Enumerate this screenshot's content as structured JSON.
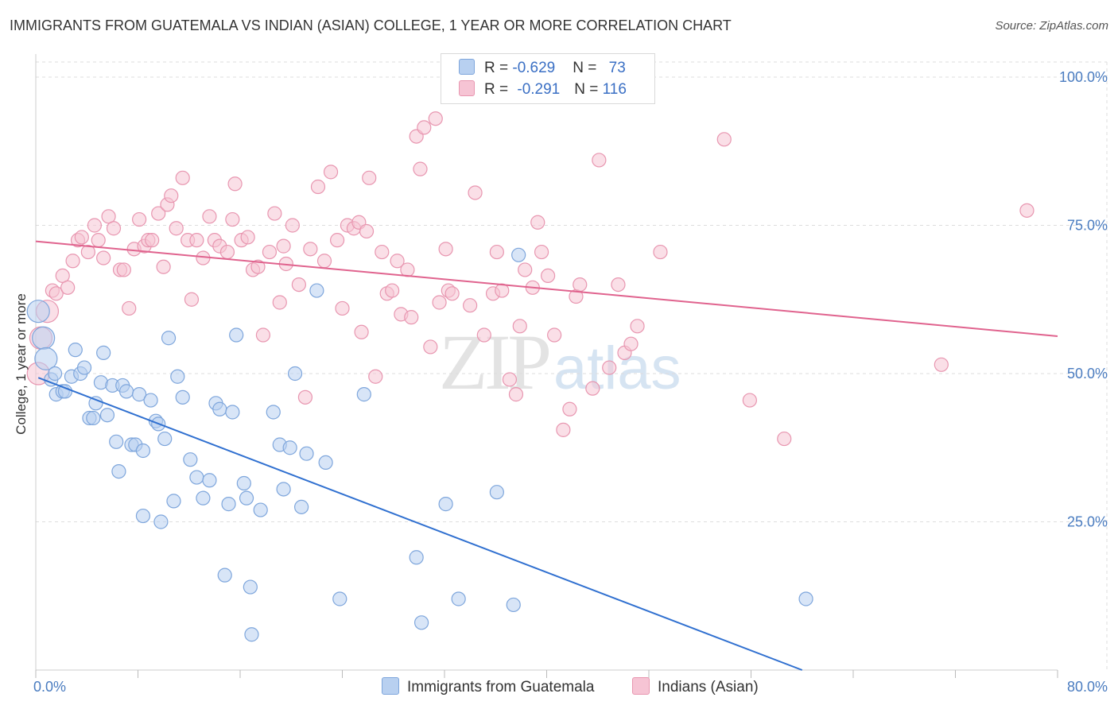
{
  "title": "IMMIGRANTS FROM GUATEMALA VS INDIAN (ASIAN) COLLEGE, 1 YEAR OR MORE CORRELATION CHART",
  "source": "Source: ZipAtlas.com",
  "watermark": {
    "zip": "ZIP",
    "atlas": "atlas"
  },
  "legend": {
    "rows": [
      {
        "r_label": "R = ",
        "r_value": "-0.629",
        "n_label": "N = ",
        "n_value": "73"
      },
      {
        "r_label": "R = ",
        "r_value": "-0.291",
        "n_label": "N = ",
        "n_value": "116"
      }
    ]
  },
  "bottom_legend": {
    "series1": "Immigrants from Guatemala",
    "series2": "Indians (Asian)"
  },
  "colors": {
    "blue_fill": "#b8d0f0",
    "blue_stroke": "#7ea6dc",
    "blue_line": "#3070d0",
    "pink_fill": "#f6c4d4",
    "pink_stroke": "#e896b0",
    "pink_line": "#e0638e",
    "grid": "#dddddd",
    "axis_label": "#4a7cc0"
  },
  "chart_data": {
    "type": "scatter",
    "title": "IMMIGRANTS FROM GUATEMALA VS INDIAN (ASIAN) COLLEGE, 1 YEAR OR MORE CORRELATION CHART",
    "xlabel": "",
    "ylabel": "College, 1 year or more",
    "xlim": [
      0,
      80
    ],
    "ylim": [
      0,
      105
    ],
    "x_tick_labels": [
      "0.0%",
      "80.0%"
    ],
    "y_ticks": [
      25,
      50,
      75,
      100
    ],
    "y_tick_labels": [
      "25.0%",
      "50.0%",
      "75.0%",
      "100.0%"
    ],
    "grid": true,
    "series": [
      {
        "name": "Immigrants from Guatemala",
        "R": -0.629,
        "N": 73,
        "trendline": [
          [
            0.2,
            49.3
          ],
          [
            60,
            0
          ]
        ],
        "points": [
          [
            0.2,
            60.5
          ],
          [
            0.6,
            56
          ],
          [
            0.8,
            52.5
          ],
          [
            1.2,
            49
          ],
          [
            1.5,
            50
          ],
          [
            1.6,
            46.5
          ],
          [
            2.1,
            47
          ],
          [
            2.3,
            47
          ],
          [
            2.8,
            49.5
          ],
          [
            3.1,
            54
          ],
          [
            3.5,
            50
          ],
          [
            3.8,
            51
          ],
          [
            4.2,
            42.5
          ],
          [
            4.5,
            42.5
          ],
          [
            4.7,
            45
          ],
          [
            5.1,
            48.5
          ],
          [
            5.3,
            53.5
          ],
          [
            5.6,
            43
          ],
          [
            6.0,
            48
          ],
          [
            6.3,
            38.5
          ],
          [
            6.5,
            33.5
          ],
          [
            6.8,
            48
          ],
          [
            7.1,
            47
          ],
          [
            7.5,
            38
          ],
          [
            7.8,
            38
          ],
          [
            8.1,
            46.5
          ],
          [
            8.4,
            37
          ],
          [
            8.4,
            26
          ],
          [
            9.0,
            45.5
          ],
          [
            9.4,
            42
          ],
          [
            9.6,
            41.5
          ],
          [
            9.8,
            25
          ],
          [
            10.1,
            39
          ],
          [
            10.4,
            56
          ],
          [
            10.8,
            28.5
          ],
          [
            11.1,
            49.5
          ],
          [
            11.5,
            46
          ],
          [
            12.1,
            35.5
          ],
          [
            12.6,
            32.5
          ],
          [
            13.1,
            29
          ],
          [
            13.6,
            32
          ],
          [
            14.1,
            45
          ],
          [
            14.4,
            44
          ],
          [
            14.8,
            16
          ],
          [
            15.1,
            28
          ],
          [
            15.4,
            43.5
          ],
          [
            15.7,
            56.5
          ],
          [
            16.3,
            31.5
          ],
          [
            16.5,
            29
          ],
          [
            16.8,
            14
          ],
          [
            16.9,
            6
          ],
          [
            17.6,
            27
          ],
          [
            18.6,
            43.5
          ],
          [
            19.1,
            38
          ],
          [
            19.4,
            30.5
          ],
          [
            19.9,
            37.5
          ],
          [
            20.3,
            50
          ],
          [
            20.8,
            27.5
          ],
          [
            21.2,
            36.5
          ],
          [
            22.0,
            64
          ],
          [
            22.7,
            35
          ],
          [
            23.8,
            12
          ],
          [
            25.7,
            46.5
          ],
          [
            29.8,
            19
          ],
          [
            30.2,
            8
          ],
          [
            32.1,
            28
          ],
          [
            33.1,
            12
          ],
          [
            36.1,
            30
          ],
          [
            37.4,
            11
          ],
          [
            37.8,
            70
          ],
          [
            60.3,
            12
          ]
        ]
      },
      {
        "name": "Indians (Asian)",
        "R": -0.291,
        "N": 116,
        "trendline": [
          [
            0,
            72.3
          ],
          [
            80,
            56.3
          ]
        ],
        "points": [
          [
            0.2,
            50
          ],
          [
            0.4,
            56
          ],
          [
            0.9,
            60.5
          ],
          [
            1.3,
            64
          ],
          [
            1.6,
            63.5
          ],
          [
            2.1,
            66.5
          ],
          [
            2.5,
            64.5
          ],
          [
            2.9,
            69
          ],
          [
            3.3,
            72.5
          ],
          [
            3.6,
            73
          ],
          [
            4.1,
            70.5
          ],
          [
            4.6,
            75
          ],
          [
            4.9,
            72.5
          ],
          [
            5.3,
            69.5
          ],
          [
            5.7,
            76.5
          ],
          [
            6.1,
            74.5
          ],
          [
            6.6,
            67.5
          ],
          [
            6.9,
            67.5
          ],
          [
            7.3,
            61
          ],
          [
            7.7,
            71
          ],
          [
            8.1,
            76
          ],
          [
            8.5,
            71.5
          ],
          [
            8.8,
            72.5
          ],
          [
            9.1,
            72.5
          ],
          [
            9.6,
            77
          ],
          [
            10.0,
            68
          ],
          [
            10.3,
            78.5
          ],
          [
            10.6,
            80
          ],
          [
            11.0,
            74.5
          ],
          [
            11.5,
            83
          ],
          [
            11.9,
            72.5
          ],
          [
            12.2,
            62.5
          ],
          [
            12.6,
            72.5
          ],
          [
            13.1,
            69.5
          ],
          [
            13.6,
            76.5
          ],
          [
            14.0,
            72.5
          ],
          [
            14.4,
            71.5
          ],
          [
            15.0,
            70.5
          ],
          [
            15.4,
            76
          ],
          [
            15.6,
            82
          ],
          [
            16.1,
            72.5
          ],
          [
            16.6,
            73
          ],
          [
            17.0,
            67.5
          ],
          [
            17.4,
            68
          ],
          [
            17.8,
            56.5
          ],
          [
            18.3,
            70.5
          ],
          [
            18.7,
            77
          ],
          [
            19.1,
            62
          ],
          [
            19.4,
            71.5
          ],
          [
            19.6,
            68.5
          ],
          [
            20.1,
            75
          ],
          [
            20.6,
            65
          ],
          [
            21.1,
            46
          ],
          [
            21.5,
            71
          ],
          [
            22.1,
            81.5
          ],
          [
            22.6,
            69
          ],
          [
            23.1,
            84
          ],
          [
            23.6,
            72.5
          ],
          [
            24.0,
            61
          ],
          [
            24.4,
            75
          ],
          [
            24.9,
            74.5
          ],
          [
            25.3,
            75.5
          ],
          [
            25.5,
            57
          ],
          [
            25.9,
            74
          ],
          [
            26.1,
            83
          ],
          [
            26.6,
            49.5
          ],
          [
            27.1,
            70.5
          ],
          [
            27.5,
            63.5
          ],
          [
            27.9,
            64
          ],
          [
            28.3,
            69
          ],
          [
            28.6,
            60
          ],
          [
            29.1,
            67.5
          ],
          [
            29.4,
            59.5
          ],
          [
            29.8,
            90
          ],
          [
            30.1,
            84.5
          ],
          [
            30.4,
            91.5
          ],
          [
            30.9,
            54.5
          ],
          [
            31.3,
            93
          ],
          [
            31.6,
            62
          ],
          [
            32.1,
            71
          ],
          [
            32.3,
            64
          ],
          [
            32.6,
            63.5
          ],
          [
            34.0,
            61.5
          ],
          [
            34.4,
            80.5
          ],
          [
            35.1,
            56.5
          ],
          [
            35.8,
            63.5
          ],
          [
            36.1,
            70.5
          ],
          [
            36.5,
            64
          ],
          [
            37.1,
            49
          ],
          [
            37.6,
            46.5
          ],
          [
            37.9,
            58
          ],
          [
            38.3,
            67.5
          ],
          [
            38.9,
            64.5
          ],
          [
            39.3,
            75.5
          ],
          [
            39.6,
            70.5
          ],
          [
            40.1,
            66.5
          ],
          [
            40.6,
            56.5
          ],
          [
            41.3,
            40.5
          ],
          [
            41.8,
            44
          ],
          [
            42.3,
            63
          ],
          [
            42.6,
            65
          ],
          [
            43.6,
            47.5
          ],
          [
            44.1,
            86
          ],
          [
            44.9,
            51
          ],
          [
            45.6,
            65
          ],
          [
            46.1,
            53.5
          ],
          [
            46.6,
            55
          ],
          [
            47.1,
            58
          ],
          [
            48.9,
            70.5
          ],
          [
            53.9,
            89.5
          ],
          [
            55.9,
            45.5
          ],
          [
            58.6,
            39
          ],
          [
            70.9,
            51.5
          ],
          [
            77.6,
            77.5
          ]
        ]
      }
    ]
  }
}
